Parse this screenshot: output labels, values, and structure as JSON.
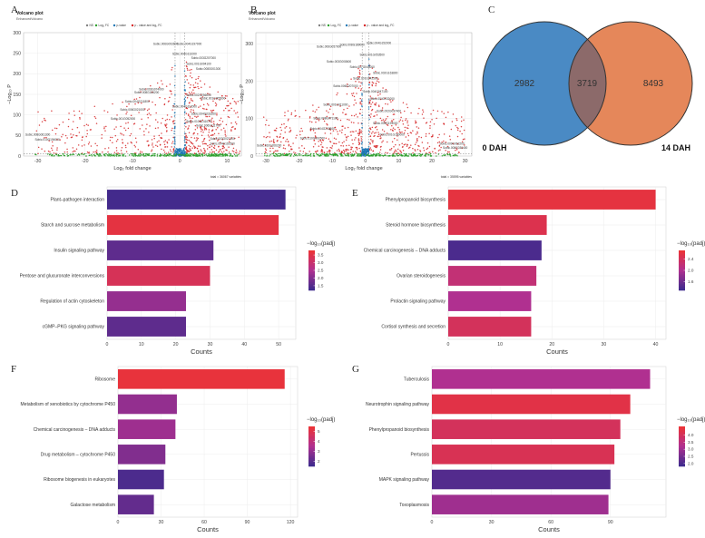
{
  "panel_letters": [
    "A",
    "B",
    "C",
    "D",
    "E",
    "F",
    "G"
  ],
  "colors": {
    "low": "#3a2a8c",
    "mid": "#b03090",
    "high": "#ee3333",
    "volcano_sig": "#d62728",
    "volcano_fc": "#2ca02c",
    "volcano_p": "#1f77b4",
    "volcano_ns": "#808080",
    "venn_left": "#4a8ac4",
    "venn_right": "#e5875a",
    "venn_overlap": "#8c6a6a"
  },
  "volcano_common": {
    "title": "Volcano plot",
    "subtitle": "EnhancedVolcano",
    "legend": [
      "NS",
      "Log₂ FC",
      "p-value",
      "p - value and log₂ FC"
    ],
    "xlabel": "Log₂ fold change",
    "ylabel": "−Log₁₀ P"
  },
  "chart_data": [
    {
      "id": "A",
      "type": "scatter",
      "title": "Volcano plot",
      "subtitle": "EnhancedVolcano",
      "xlabel": "Log₂ fold change",
      "ylabel": "−Log₁₀ P",
      "x_ticks": [
        -30,
        -20,
        -10,
        0,
        10
      ],
      "y_ticks": [
        0,
        50,
        100,
        150,
        200,
        250,
        300
      ],
      "xlim": [
        -33,
        13
      ],
      "ylim": [
        0,
        300
      ],
      "caption": "total = 36067 variables",
      "labels": [
        {
          "text": "Sobic.006G093600",
          "x": -3,
          "y": 270
        },
        {
          "text": "Sobic.004G197900",
          "x": 2,
          "y": 270
        },
        {
          "text": "Sobic.004G111000",
          "x": 1,
          "y": 246
        },
        {
          "text": "Sobic.003G207000",
          "x": 5,
          "y": 236
        },
        {
          "text": "Sobic.001G094100",
          "x": 4,
          "y": 222
        },
        {
          "text": "Sobic.008G001300",
          "x": 6,
          "y": 210
        },
        {
          "text": "Sobic.003G074000",
          "x": -6,
          "y": 160
        },
        {
          "text": "Sobic.008G166200",
          "x": -7,
          "y": 152
        },
        {
          "text": "Sobic.002G256000",
          "x": 4,
          "y": 146
        },
        {
          "text": "Sobic.001G305600",
          "x": 7,
          "y": 138
        },
        {
          "text": "Sobic.004G211800",
          "x": -9,
          "y": 130
        },
        {
          "text": "Sobic.004G112000",
          "x": 1,
          "y": 118
        },
        {
          "text": "Sobic.006G021000",
          "x": -10,
          "y": 110
        },
        {
          "text": "Sobic.004G033200",
          "x": 5,
          "y": 100
        },
        {
          "text": "Sobic.001G052000",
          "x": -12,
          "y": 88
        },
        {
          "text": "Sobic.010G141075",
          "x": 4,
          "y": 82
        },
        {
          "text": "Sobic.006G111700",
          "x": 6,
          "y": 72
        },
        {
          "text": "Sobic.008G061300",
          "x": -30,
          "y": 50
        },
        {
          "text": "Sobic.010G194000",
          "x": -28,
          "y": 38
        },
        {
          "text": "Sobic.003G027400",
          "x": 9,
          "y": 40
        },
        {
          "text": "Sobic.004G102500",
          "x": 9,
          "y": 28
        }
      ]
    },
    {
      "id": "B",
      "type": "scatter",
      "title": "Volcano plot",
      "subtitle": "EnhancedVolcano",
      "xlabel": "Log₂ fold change",
      "ylabel": "−Log₁₀ P",
      "x_ticks": [
        -30,
        -20,
        -10,
        0,
        10,
        20,
        30
      ],
      "y_ticks": [
        0,
        100,
        200,
        300
      ],
      "xlim": [
        -33,
        32
      ],
      "ylim": [
        0,
        330
      ],
      "caption": "total = 35595 variables",
      "labels": [
        {
          "text": "Sobic.004G152000",
          "x": 4,
          "y": 300
        },
        {
          "text": "Sobic.008G189000",
          "x": -4,
          "y": 295
        },
        {
          "text": "Sobic.006G057000",
          "x": -11,
          "y": 290
        },
        {
          "text": "Sobic.001G053500",
          "x": 2,
          "y": 268
        },
        {
          "text": "Sobic.003G008600",
          "x": -8,
          "y": 250
        },
        {
          "text": "Sobic.007G045000",
          "x": -1,
          "y": 235
        },
        {
          "text": "Sobic.002G163800",
          "x": 6,
          "y": 220
        },
        {
          "text": "Sobic.001G042500",
          "x": 0,
          "y": 205
        },
        {
          "text": "Sobic.006G207000",
          "x": -6,
          "y": 185
        },
        {
          "text": "Sobic.004G047100",
          "x": 3,
          "y": 170
        },
        {
          "text": "Sobic.004G032000",
          "x": 5,
          "y": 150
        },
        {
          "text": "Sobic.001G011000",
          "x": -9,
          "y": 135
        },
        {
          "text": "Sobic.002G037400",
          "x": 7,
          "y": 118
        },
        {
          "text": "Sobic.008G071100",
          "x": -12,
          "y": 98
        },
        {
          "text": "Sobic.009G193000",
          "x": 6,
          "y": 85
        },
        {
          "text": "Sobic.004G218800",
          "x": -13,
          "y": 70
        },
        {
          "text": "Sobic.001G160000",
          "x": 8,
          "y": 55
        },
        {
          "text": "Sobic.010G092600",
          "x": -16,
          "y": 45
        },
        {
          "text": "Sobic.010G206200",
          "x": -29,
          "y": 25
        },
        {
          "text": "Sobic.009G062200",
          "x": 26,
          "y": 30
        },
        {
          "text": "Sobic.008G030400",
          "x": 27,
          "y": 20
        }
      ]
    },
    {
      "id": "C",
      "type": "venn",
      "sets": [
        "0 DAH",
        "14 DAH"
      ],
      "values": {
        "only_left": 2982,
        "overlap": 3719,
        "only_right": 8493
      }
    },
    {
      "id": "D",
      "type": "bar",
      "orientation": "horizontal",
      "categories": [
        "Plant–pathogen interaction",
        "Starch and sucrose metabolism",
        "Insulin signaling pathway",
        "Pentose and glucuronate interconversions",
        "Regulation of actin cytoskeleton",
        "cGMP–PKG signaling pathway"
      ],
      "values": [
        52,
        50,
        31,
        30,
        23,
        23
      ],
      "color_values": [
        1.3,
        3.6,
        1.6,
        3.3,
        2.2,
        1.6
      ],
      "color_range": [
        1.2,
        3.8
      ],
      "legend_ticks": [
        1.5,
        2.0,
        2.5,
        3.0,
        3.5
      ],
      "legend_title": "−log₁₀(padj)",
      "xlabel": "Counts",
      "x_ticks": [
        0,
        10,
        20,
        30,
        40,
        50
      ],
      "xlim": [
        0,
        55
      ]
    },
    {
      "id": "E",
      "type": "bar",
      "orientation": "horizontal",
      "categories": [
        "Phenylpropanoid biosynthesis",
        "Steroid hormone biosynthesis",
        "Chemical carcinogenesis – DNA adducts",
        "Ovarian steroidogenesis",
        "Prolactin signaling pathway",
        "Cortisol synthesis and secretion"
      ],
      "values": [
        40,
        19,
        18,
        17,
        16,
        16
      ],
      "color_values": [
        2.6,
        2.5,
        1.4,
        2.2,
        2.0,
        2.4
      ],
      "color_range": [
        1.3,
        2.7
      ],
      "legend_ticks": [
        1.6,
        2.0,
        2.4
      ],
      "legend_title": "−log₁₀(padj)",
      "xlabel": "Counts",
      "x_ticks": [
        0,
        10,
        20,
        30,
        40
      ],
      "xlim": [
        0,
        42
      ]
    },
    {
      "id": "F",
      "type": "bar",
      "orientation": "horizontal",
      "categories": [
        "Ribosome",
        "Metabolism of xenobiotics by cytochrome P450",
        "Chemical carcinogenesis – DNA adducts",
        "Drug metabolism – cytochrome P450",
        "Ribosome biogenesis in eukaryotes",
        "Galactose metabolism"
      ],
      "values": [
        116,
        41,
        40,
        33,
        32,
        25
      ],
      "color_values": [
        5.3,
        3.0,
        3.2,
        2.7,
        1.8,
        2.2
      ],
      "color_range": [
        1.5,
        5.5
      ],
      "legend_ticks": [
        2,
        3,
        4,
        5
      ],
      "legend_title": "−log₁₀(padj)",
      "xlabel": "Counts",
      "x_ticks": [
        0,
        30,
        60,
        90,
        120
      ],
      "xlim": [
        0,
        125
      ]
    },
    {
      "id": "G",
      "type": "bar",
      "orientation": "horizontal",
      "categories": [
        "Tuberculosis",
        "Neurotrophin signaling pathway",
        "Phenylpropanoid biosynthesis",
        "Pertussis",
        "MAPK signaling pathway",
        "Toxoplasmosis"
      ],
      "values": [
        110,
        100,
        95,
        92,
        90,
        89
      ],
      "color_values": [
        3.2,
        4.3,
        4.0,
        4.1,
        2.1,
        3.0
      ],
      "color_range": [
        1.8,
        4.6
      ],
      "legend_ticks": [
        2.0,
        2.5,
        3.0,
        3.5,
        4.0
      ],
      "legend_title": "−log₁₀(padj)",
      "xlabel": "Counts",
      "x_ticks": [
        0,
        30,
        60,
        90
      ],
      "xlim": [
        0,
        118
      ]
    }
  ]
}
